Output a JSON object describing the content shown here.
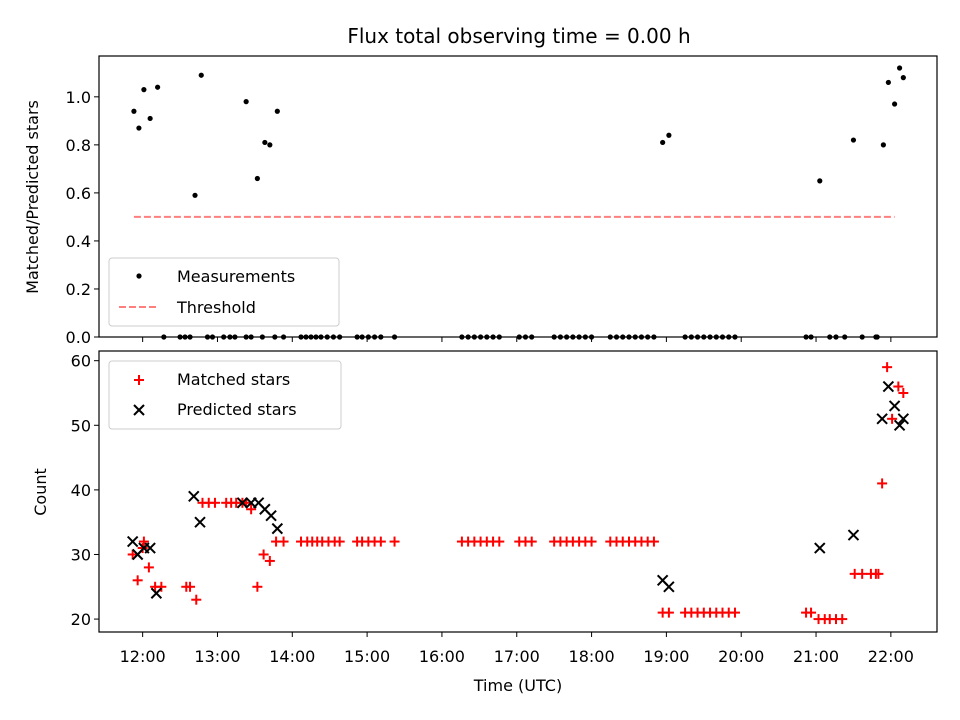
{
  "chart_data": [
    {
      "type": "scatter",
      "title": "Flux total observing time = 0.00 h",
      "xlabel": "",
      "ylabel": "Matched/Predicted stars",
      "xlim": [
        "11:25",
        "22:37"
      ],
      "ylim": [
        0.0,
        1.17
      ],
      "yticks": [
        "0.0",
        "0.2",
        "0.4",
        "0.6",
        "0.8",
        "1.0"
      ],
      "legend": {
        "location": "lower-left",
        "entries": [
          "Measurements",
          "Threshold"
        ]
      },
      "series": [
        {
          "name": "Measurements",
          "color": "#000000",
          "marker": "dot",
          "points": [
            [
              "11:53",
              0.94
            ],
            [
              "11:57",
              0.87
            ],
            [
              "12:01",
              1.03
            ],
            [
              "12:06",
              0.91
            ],
            [
              "12:12",
              1.04
            ],
            [
              "12:17",
              0.0
            ],
            [
              "12:30",
              0.0
            ],
            [
              "12:34",
              0.0
            ],
            [
              "12:38",
              0.0
            ],
            [
              "12:42",
              0.59
            ],
            [
              "12:47",
              1.09
            ],
            [
              "12:52",
              0.0
            ],
            [
              "12:56",
              0.0
            ],
            [
              "13:05",
              0.0
            ],
            [
              "13:10",
              0.0
            ],
            [
              "13:14",
              0.0
            ],
            [
              "13:23",
              0.0
            ],
            [
              "13:23",
              0.98
            ],
            [
              "13:27",
              0.0
            ],
            [
              "13:32",
              0.66
            ],
            [
              "13:36",
              0.0
            ],
            [
              "13:38",
              0.81
            ],
            [
              "13:42",
              0.8
            ],
            [
              "13:46",
              0.0
            ],
            [
              "13:48",
              0.94
            ],
            [
              "13:53",
              0.0
            ],
            [
              "14:07",
              0.0
            ],
            [
              "14:11",
              0.0
            ],
            [
              "14:15",
              0.0
            ],
            [
              "14:19",
              0.0
            ],
            [
              "14:23",
              0.0
            ],
            [
              "14:28",
              0.0
            ],
            [
              "14:33",
              0.0
            ],
            [
              "14:38",
              0.0
            ],
            [
              "14:52",
              0.0
            ],
            [
              "14:56",
              0.0
            ],
            [
              "15:01",
              0.0
            ],
            [
              "15:06",
              0.0
            ],
            [
              "15:11",
              0.0
            ],
            [
              "15:22",
              0.0
            ],
            [
              "16:16",
              0.0
            ],
            [
              "16:21",
              0.0
            ],
            [
              "16:26",
              0.0
            ],
            [
              "16:31",
              0.0
            ],
            [
              "16:36",
              0.0
            ],
            [
              "16:41",
              0.0
            ],
            [
              "16:46",
              0.0
            ],
            [
              "17:02",
              0.0
            ],
            [
              "17:07",
              0.0
            ],
            [
              "17:12",
              0.0
            ],
            [
              "17:30",
              0.0
            ],
            [
              "17:35",
              0.0
            ],
            [
              "17:40",
              0.0
            ],
            [
              "17:45",
              0.0
            ],
            [
              "17:50",
              0.0
            ],
            [
              "17:55",
              0.0
            ],
            [
              "18:00",
              0.0
            ],
            [
              "18:15",
              0.0
            ],
            [
              "18:20",
              0.0
            ],
            [
              "18:25",
              0.0
            ],
            [
              "18:30",
              0.0
            ],
            [
              "18:35",
              0.0
            ],
            [
              "18:40",
              0.0
            ],
            [
              "18:45",
              0.0
            ],
            [
              "18:50",
              0.0
            ],
            [
              "18:57",
              0.81
            ],
            [
              "19:02",
              0.84
            ],
            [
              "19:15",
              0.0
            ],
            [
              "19:20",
              0.0
            ],
            [
              "19:25",
              0.0
            ],
            [
              "19:30",
              0.0
            ],
            [
              "19:35",
              0.0
            ],
            [
              "19:40",
              0.0
            ],
            [
              "19:45",
              0.0
            ],
            [
              "19:50",
              0.0
            ],
            [
              "19:55",
              0.0
            ],
            [
              "20:52",
              0.0
            ],
            [
              "20:56",
              0.0
            ],
            [
              "21:03",
              0.65
            ],
            [
              "21:11",
              0.0
            ],
            [
              "21:16",
              0.0
            ],
            [
              "21:23",
              0.0
            ],
            [
              "21:30",
              0.82
            ],
            [
              "21:37",
              0.0
            ],
            [
              "21:48",
              0.0
            ],
            [
              "21:49",
              0.0
            ],
            [
              "21:54",
              0.8
            ],
            [
              "21:58",
              1.06
            ],
            [
              "22:03",
              0.97
            ],
            [
              "22:07",
              1.12
            ],
            [
              "22:10",
              1.08
            ]
          ]
        },
        {
          "name": "Threshold",
          "color": "#ff7f7f",
          "style": "dashed",
          "points": [
            [
              "11:53",
              0.5
            ],
            [
              "22:03",
              0.5
            ]
          ]
        }
      ]
    },
    {
      "type": "scatter",
      "title": "",
      "xlabel": "Time (UTC)",
      "ylabel": "Count",
      "xlim": [
        "11:25",
        "22:37"
      ],
      "ylim": [
        18.0,
        61.5
      ],
      "xticks": [
        "12:00",
        "13:00",
        "14:00",
        "15:00",
        "16:00",
        "17:00",
        "18:00",
        "19:00",
        "20:00",
        "21:00",
        "22:00"
      ],
      "yticks": [
        "20",
        "30",
        "40",
        "50",
        "60"
      ],
      "legend": {
        "location": "top-left",
        "entries": [
          "Matched stars",
          "Predicted stars"
        ]
      },
      "series": [
        {
          "name": "Matched stars",
          "color": "#ff0000",
          "marker": "plus",
          "points": [
            [
              "11:52",
              30
            ],
            [
              "11:56",
              26
            ],
            [
              "12:00",
              31
            ],
            [
              "12:01",
              32
            ],
            [
              "12:05",
              28
            ],
            [
              "12:10",
              25
            ],
            [
              "12:15",
              25
            ],
            [
              "12:35",
              25
            ],
            [
              "12:38",
              25
            ],
            [
              "12:43",
              23
            ],
            [
              "12:48",
              38
            ],
            [
              "12:53",
              38
            ],
            [
              "12:58",
              38
            ],
            [
              "13:07",
              38
            ],
            [
              "13:11",
              38
            ],
            [
              "13:15",
              38
            ],
            [
              "13:20",
              38
            ],
            [
              "13:23",
              38
            ],
            [
              "13:27",
              37
            ],
            [
              "13:32",
              25
            ],
            [
              "13:37",
              30
            ],
            [
              "13:42",
              29
            ],
            [
              "13:47",
              32
            ],
            [
              "13:53",
              32
            ],
            [
              "14:07",
              32
            ],
            [
              "14:12",
              32
            ],
            [
              "14:16",
              32
            ],
            [
              "14:20",
              32
            ],
            [
              "14:24",
              32
            ],
            [
              "14:29",
              32
            ],
            [
              "14:34",
              32
            ],
            [
              "14:38",
              32
            ],
            [
              "14:52",
              32
            ],
            [
              "14:56",
              32
            ],
            [
              "15:01",
              32
            ],
            [
              "15:06",
              32
            ],
            [
              "15:11",
              32
            ],
            [
              "15:22",
              32
            ],
            [
              "16:16",
              32
            ],
            [
              "16:21",
              32
            ],
            [
              "16:26",
              32
            ],
            [
              "16:31",
              32
            ],
            [
              "16:36",
              32
            ],
            [
              "16:41",
              32
            ],
            [
              "16:46",
              32
            ],
            [
              "17:02",
              32
            ],
            [
              "17:07",
              32
            ],
            [
              "17:12",
              32
            ],
            [
              "17:30",
              32
            ],
            [
              "17:35",
              32
            ],
            [
              "17:40",
              32
            ],
            [
              "17:45",
              32
            ],
            [
              "17:50",
              32
            ],
            [
              "17:55",
              32
            ],
            [
              "18:00",
              32
            ],
            [
              "18:15",
              32
            ],
            [
              "18:20",
              32
            ],
            [
              "18:25",
              32
            ],
            [
              "18:30",
              32
            ],
            [
              "18:35",
              32
            ],
            [
              "18:40",
              32
            ],
            [
              "18:45",
              32
            ],
            [
              "18:50",
              32
            ],
            [
              "18:57",
              21
            ],
            [
              "19:02",
              21
            ],
            [
              "19:15",
              21
            ],
            [
              "19:20",
              21
            ],
            [
              "19:25",
              21
            ],
            [
              "19:30",
              21
            ],
            [
              "19:35",
              21
            ],
            [
              "19:40",
              21
            ],
            [
              "19:45",
              21
            ],
            [
              "19:50",
              21
            ],
            [
              "19:55",
              21
            ],
            [
              "20:52",
              21
            ],
            [
              "20:56",
              21
            ],
            [
              "21:02",
              20
            ],
            [
              "21:07",
              20
            ],
            [
              "21:11",
              20
            ],
            [
              "21:16",
              20
            ],
            [
              "21:21",
              20
            ],
            [
              "21:31",
              27
            ],
            [
              "21:37",
              27
            ],
            [
              "21:44",
              27
            ],
            [
              "21:48",
              27
            ],
            [
              "21:50",
              27
            ],
            [
              "21:53",
              41
            ],
            [
              "21:57",
              59
            ],
            [
              "22:01",
              51
            ],
            [
              "22:06",
              56
            ],
            [
              "22:10",
              55
            ]
          ]
        },
        {
          "name": "Predicted stars",
          "color": "#000000",
          "marker": "x",
          "points": [
            [
              "11:52",
              32
            ],
            [
              "11:56",
              30
            ],
            [
              "12:01",
              31
            ],
            [
              "12:06",
              31
            ],
            [
              "12:11",
              24
            ],
            [
              "12:41",
              39
            ],
            [
              "12:46",
              35
            ],
            [
              "13:20",
              38
            ],
            [
              "13:27",
              38
            ],
            [
              "13:33",
              38
            ],
            [
              "13:38",
              37
            ],
            [
              "13:43",
              36
            ],
            [
              "13:48",
              34
            ],
            [
              "18:57",
              26
            ],
            [
              "19:02",
              25
            ],
            [
              "21:03",
              31
            ],
            [
              "21:30",
              33
            ],
            [
              "21:53",
              51
            ],
            [
              "21:58",
              56
            ],
            [
              "22:03",
              53
            ],
            [
              "22:07",
              50
            ],
            [
              "22:10",
              51
            ]
          ]
        }
      ]
    }
  ]
}
